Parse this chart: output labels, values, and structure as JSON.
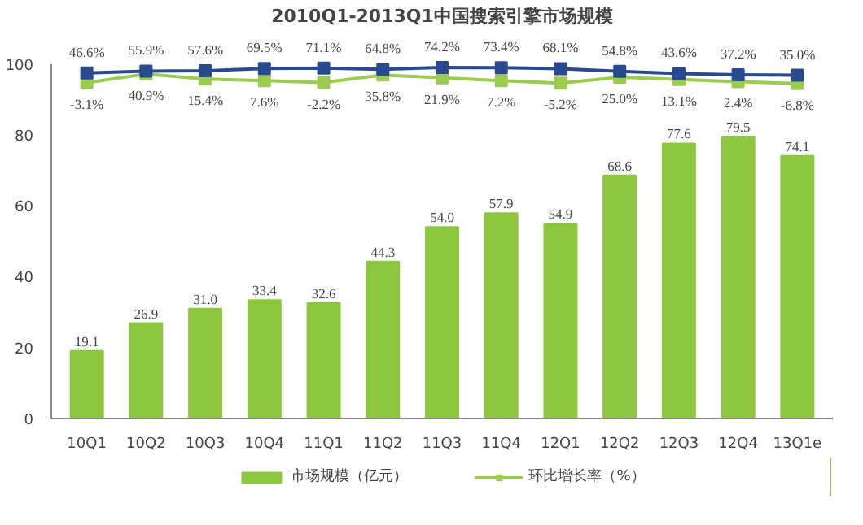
{
  "chart_data": {
    "type": "bar",
    "title": "2010Q1-2013Q1中国搜索引擎市场规模",
    "categories": [
      "10Q1",
      "10Q2",
      "10Q3",
      "10Q4",
      "11Q1",
      "11Q2",
      "11Q3",
      "11Q4",
      "12Q1",
      "12Q2",
      "12Q3",
      "12Q4",
      "13Q1e"
    ],
    "series": [
      {
        "name": "市场规模（亿元）",
        "color": "#8dc63f",
        "values": [
          19.1,
          26.9,
          31.0,
          33.4,
          32.6,
          44.3,
          54.0,
          57.9,
          54.9,
          68.6,
          77.6,
          79.5,
          74.1
        ],
        "value_labels": [
          "19.1",
          "26.9",
          "31.0",
          "33.4",
          "32.6",
          "44.3",
          "54.0",
          "57.9",
          "54.9",
          "68.6",
          "77.6",
          "79.5",
          "74.1"
        ]
      },
      {
        "name": "环比增长率（%）",
        "type": "line",
        "axis": "y2",
        "color": "#9bcb50",
        "values": [
          -3.1,
          40.9,
          15.4,
          7.6,
          -2.2,
          35.8,
          21.9,
          7.2,
          -5.2,
          25.0,
          13.1,
          2.4,
          -6.8
        ],
        "value_labels": [
          "-3.1%",
          "40.9%",
          "15.4%",
          "7.6%",
          "-2.2%",
          "35.8%",
          "21.9%",
          "7.2%",
          "-5.2%",
          "25.0%",
          "13.1%",
          "2.4%",
          "-6.8%"
        ]
      },
      {
        "type": "line",
        "axis": "y2",
        "color": "#2a4a8f",
        "values": [
          46.6,
          55.9,
          57.6,
          69.5,
          71.1,
          64.8,
          74.2,
          73.4,
          68.1,
          54.8,
          43.6,
          37.2,
          35.0
        ],
        "value_labels": [
          "46.6%",
          "55.9%",
          "57.6%",
          "69.5%",
          "71.1%",
          "64.8%",
          "74.2%",
          "73.4%",
          "68.1%",
          "54.8%",
          "43.6%",
          "37.2%",
          "35.0%"
        ]
      }
    ],
    "ylim": [
      0,
      100
    ],
    "yticks": [
      0,
      20,
      40,
      60,
      80,
      100
    ],
    "marker": "square",
    "grid": false,
    "legend": "bottom"
  }
}
